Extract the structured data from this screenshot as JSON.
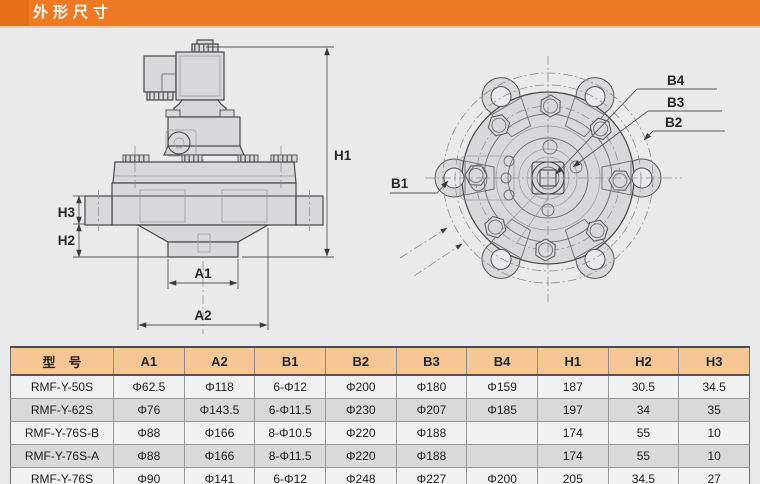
{
  "page": {
    "title": "外形尺寸"
  },
  "colors": {
    "accent_orange": "#ee7b24",
    "accent_orange_dark": "#e56f15",
    "table_header_peach": "#f6c795",
    "row_light": "#f1f1f3",
    "row_shaded": "#d8d9db"
  },
  "drawings": {
    "side_view": {
      "dimension_labels": {
        "H1": "H1",
        "H2": "H2",
        "H3": "H3",
        "A1": "A1",
        "A2": "A2"
      }
    },
    "flange_view": {
      "dimension_labels": {
        "B1": "B1",
        "B2": "B2",
        "B3": "B3",
        "B4": "B4"
      }
    }
  },
  "table": {
    "columns": [
      "型　号",
      "A1",
      "A2",
      "B1",
      "B2",
      "B3",
      "B4",
      "H1",
      "H2",
      "H3"
    ],
    "rows": [
      [
        "RMF-Y-50S",
        "Φ62.5",
        "Φ118",
        "6-Φ12",
        "Φ200",
        "Φ180",
        "Φ159",
        "187",
        "30.5",
        "34.5"
      ],
      [
        "RMF-Y-62S",
        "Φ76",
        "Φ143.5",
        "6-Φ11.5",
        "Φ230",
        "Φ207",
        "Φ185",
        "197",
        "34",
        "35"
      ],
      [
        "RMF-Y-76S-B",
        "Φ88",
        "Φ166",
        "8-Φ10.5",
        "Φ220",
        "Φ188",
        "",
        "174",
        "55",
        "10"
      ],
      [
        "RMF-Y-76S-A",
        "Φ88",
        "Φ166",
        "8-Φ11.5",
        "Φ220",
        "Φ188",
        "",
        "174",
        "55",
        "10"
      ],
      [
        "RMF-Y-76S",
        "Φ90",
        "Φ141",
        "6-Φ12",
        "Φ248",
        "Φ227",
        "Φ200",
        "205",
        "34.5",
        "27"
      ]
    ]
  }
}
